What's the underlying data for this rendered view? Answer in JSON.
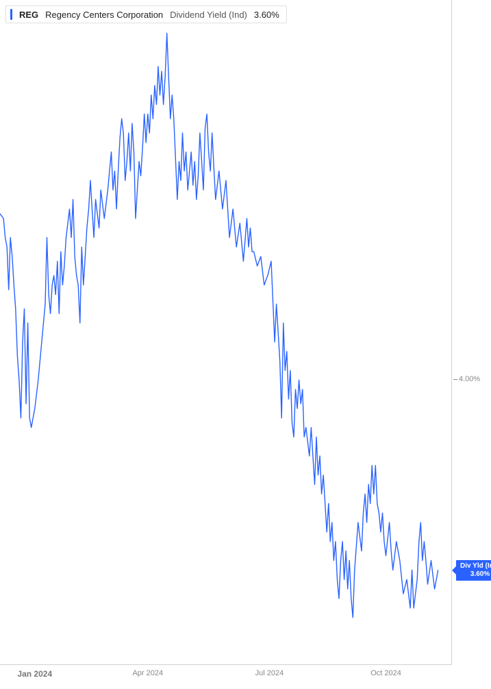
{
  "legend": {
    "ticker": "REG",
    "company": "Regency Centers Corporation",
    "metric": "Dividend Yield (Ind)",
    "value": "3.60%"
  },
  "chart": {
    "type": "line",
    "line_color": "#2962ff",
    "line_width": 1.4,
    "background_color": "#ffffff",
    "axis_color": "#d0d0d0",
    "y_axis": {
      "min": 3.4,
      "max": 4.8,
      "ticks": [
        {
          "value": 4.0,
          "label": "4.00%"
        }
      ],
      "tick_color": "#888888",
      "tick_fontsize": 11
    },
    "x_axis": {
      "min": 0,
      "max": 260,
      "ticks": [
        {
          "pos": 20,
          "label": "Jan 2024",
          "major": true
        },
        {
          "pos": 85,
          "label": "Apr 2024",
          "major": false
        },
        {
          "pos": 155,
          "label": "Jul 2024",
          "major": false
        },
        {
          "pos": 222,
          "label": "Oct 2024",
          "major": false
        }
      ],
      "tick_color": "#888888",
      "tick_fontsize": 11
    },
    "current_tag": {
      "line1": "Div Yld (Ind)",
      "line2": "3.60%",
      "bg_color": "#2962ff",
      "text_color": "#ffffff",
      "y_value": 3.6
    },
    "series": [
      [
        0,
        4.35
      ],
      [
        2,
        4.34
      ],
      [
        3,
        4.3
      ],
      [
        4,
        4.28
      ],
      [
        5,
        4.19
      ],
      [
        6,
        4.3
      ],
      [
        7,
        4.26
      ],
      [
        8,
        4.2
      ],
      [
        9,
        4.15
      ],
      [
        10,
        4.05
      ],
      [
        11,
        4.0
      ],
      [
        12,
        3.92
      ],
      [
        13,
        4.08
      ],
      [
        14,
        4.15
      ],
      [
        15,
        3.95
      ],
      [
        16,
        4.12
      ],
      [
        17,
        3.92
      ],
      [
        18,
        3.9
      ],
      [
        19,
        3.92
      ],
      [
        20,
        3.94
      ],
      [
        22,
        4.0
      ],
      [
        24,
        4.08
      ],
      [
        26,
        4.16
      ],
      [
        27,
        4.3
      ],
      [
        28,
        4.18
      ],
      [
        29,
        4.14
      ],
      [
        30,
        4.2
      ],
      [
        31,
        4.22
      ],
      [
        32,
        4.18
      ],
      [
        33,
        4.25
      ],
      [
        34,
        4.14
      ],
      [
        35,
        4.27
      ],
      [
        36,
        4.2
      ],
      [
        37,
        4.24
      ],
      [
        38,
        4.3
      ],
      [
        40,
        4.36
      ],
      [
        41,
        4.3
      ],
      [
        42,
        4.38
      ],
      [
        43,
        4.26
      ],
      [
        44,
        4.22
      ],
      [
        45,
        4.2
      ],
      [
        46,
        4.12
      ],
      [
        47,
        4.28
      ],
      [
        48,
        4.2
      ],
      [
        49,
        4.26
      ],
      [
        50,
        4.32
      ],
      [
        51,
        4.36
      ],
      [
        52,
        4.42
      ],
      [
        53,
        4.36
      ],
      [
        54,
        4.3
      ],
      [
        55,
        4.38
      ],
      [
        57,
        4.32
      ],
      [
        58,
        4.4
      ],
      [
        60,
        4.34
      ],
      [
        62,
        4.4
      ],
      [
        64,
        4.48
      ],
      [
        65,
        4.4
      ],
      [
        66,
        4.44
      ],
      [
        67,
        4.36
      ],
      [
        68,
        4.44
      ],
      [
        69,
        4.51
      ],
      [
        70,
        4.55
      ],
      [
        71,
        4.52
      ],
      [
        72,
        4.42
      ],
      [
        73,
        4.46
      ],
      [
        74,
        4.52
      ],
      [
        75,
        4.44
      ],
      [
        76,
        4.54
      ],
      [
        77,
        4.48
      ],
      [
        78,
        4.34
      ],
      [
        79,
        4.4
      ],
      [
        80,
        4.46
      ],
      [
        81,
        4.43
      ],
      [
        82,
        4.49
      ],
      [
        83,
        4.56
      ],
      [
        84,
        4.5
      ],
      [
        85,
        4.56
      ],
      [
        86,
        4.52
      ],
      [
        87,
        4.6
      ],
      [
        88,
        4.55
      ],
      [
        89,
        4.62
      ],
      [
        90,
        4.58
      ],
      [
        91,
        4.66
      ],
      [
        92,
        4.6
      ],
      [
        93,
        4.65
      ],
      [
        94,
        4.58
      ],
      [
        95,
        4.64
      ],
      [
        96,
        4.73
      ],
      [
        97,
        4.64
      ],
      [
        98,
        4.55
      ],
      [
        99,
        4.6
      ],
      [
        100,
        4.55
      ],
      [
        102,
        4.38
      ],
      [
        103,
        4.46
      ],
      [
        104,
        4.42
      ],
      [
        105,
        4.52
      ],
      [
        106,
        4.44
      ],
      [
        107,
        4.48
      ],
      [
        108,
        4.4
      ],
      [
        110,
        4.48
      ],
      [
        111,
        4.41
      ],
      [
        112,
        4.46
      ],
      [
        113,
        4.38
      ],
      [
        114,
        4.43
      ],
      [
        115,
        4.52
      ],
      [
        116,
        4.46
      ],
      [
        117,
        4.4
      ],
      [
        118,
        4.53
      ],
      [
        119,
        4.56
      ],
      [
        120,
        4.48
      ],
      [
        121,
        4.44
      ],
      [
        122,
        4.52
      ],
      [
        123,
        4.45
      ],
      [
        124,
        4.38
      ],
      [
        126,
        4.44
      ],
      [
        128,
        4.36
      ],
      [
        130,
        4.42
      ],
      [
        132,
        4.3
      ],
      [
        134,
        4.36
      ],
      [
        136,
        4.28
      ],
      [
        138,
        4.33
      ],
      [
        140,
        4.25
      ],
      [
        142,
        4.34
      ],
      [
        143,
        4.28
      ],
      [
        144,
        4.32
      ],
      [
        145,
        4.27
      ],
      [
        146,
        4.27
      ],
      [
        148,
        4.24
      ],
      [
        150,
        4.26
      ],
      [
        152,
        4.2
      ],
      [
        154,
        4.22
      ],
      [
        156,
        4.25
      ],
      [
        158,
        4.08
      ],
      [
        159,
        4.16
      ],
      [
        160,
        4.1
      ],
      [
        161,
        4.04
      ],
      [
        162,
        3.92
      ],
      [
        163,
        4.12
      ],
      [
        164,
        4.02
      ],
      [
        165,
        4.06
      ],
      [
        166,
        3.96
      ],
      [
        167,
        4.02
      ],
      [
        168,
        3.91
      ],
      [
        169,
        3.88
      ],
      [
        170,
        3.98
      ],
      [
        171,
        3.94
      ],
      [
        172,
        4.0
      ],
      [
        173,
        3.95
      ],
      [
        174,
        3.98
      ],
      [
        175,
        3.88
      ],
      [
        176,
        3.9
      ],
      [
        178,
        3.84
      ],
      [
        179,
        3.9
      ],
      [
        180,
        3.84
      ],
      [
        181,
        3.78
      ],
      [
        182,
        3.88
      ],
      [
        183,
        3.8
      ],
      [
        184,
        3.84
      ],
      [
        185,
        3.76
      ],
      [
        186,
        3.8
      ],
      [
        187,
        3.74
      ],
      [
        188,
        3.68
      ],
      [
        189,
        3.74
      ],
      [
        190,
        3.66
      ],
      [
        191,
        3.7
      ],
      [
        192,
        3.62
      ],
      [
        193,
        3.66
      ],
      [
        194,
        3.58
      ],
      [
        195,
        3.54
      ],
      [
        196,
        3.62
      ],
      [
        197,
        3.66
      ],
      [
        198,
        3.58
      ],
      [
        199,
        3.64
      ],
      [
        200,
        3.56
      ],
      [
        201,
        3.62
      ],
      [
        202,
        3.54
      ],
      [
        203,
        3.5
      ],
      [
        204,
        3.6
      ],
      [
        206,
        3.7
      ],
      [
        208,
        3.64
      ],
      [
        209,
        3.72
      ],
      [
        210,
        3.76
      ],
      [
        211,
        3.7
      ],
      [
        212,
        3.78
      ],
      [
        213,
        3.74
      ],
      [
        214,
        3.82
      ],
      [
        215,
        3.76
      ],
      [
        216,
        3.82
      ],
      [
        217,
        3.74
      ],
      [
        218,
        3.72
      ],
      [
        219,
        3.68
      ],
      [
        220,
        3.72
      ],
      [
        221,
        3.66
      ],
      [
        222,
        3.63
      ],
      [
        224,
        3.7
      ],
      [
        225,
        3.64
      ],
      [
        226,
        3.6
      ],
      [
        228,
        3.66
      ],
      [
        230,
        3.62
      ],
      [
        232,
        3.55
      ],
      [
        234,
        3.58
      ],
      [
        236,
        3.52
      ],
      [
        237,
        3.6
      ],
      [
        238,
        3.52
      ],
      [
        240,
        3.58
      ],
      [
        241,
        3.66
      ],
      [
        242,
        3.7
      ],
      [
        243,
        3.62
      ],
      [
        244,
        3.66
      ],
      [
        245,
        3.62
      ],
      [
        246,
        3.57
      ],
      [
        248,
        3.62
      ],
      [
        250,
        3.56
      ],
      [
        252,
        3.6
      ]
    ]
  }
}
